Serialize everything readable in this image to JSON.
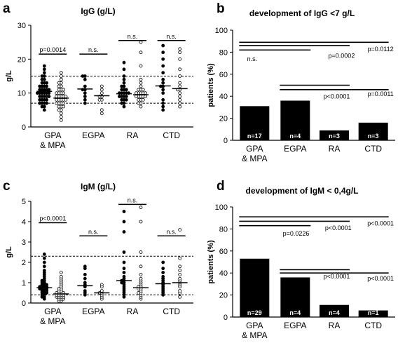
{
  "chart_data": [
    {
      "panel": "a",
      "type": "scatter",
      "title": "IgG (g/L)",
      "ylabel": "g/L",
      "ylim": [
        0,
        30
      ],
      "yticks": [
        "0",
        "10",
        "20",
        "30"
      ],
      "reference_lines": [
        7,
        15
      ],
      "groups": [
        {
          "label": [
            "GPA",
            "& MPA"
          ],
          "series": [
            {
              "marker": "filled",
              "median": 10.5,
              "values": [
                5,
                6,
                6,
                7,
                7,
                7,
                7,
                8,
                8,
                8,
                8,
                9,
                9,
                9,
                9,
                9,
                10,
                10,
                10,
                10,
                10,
                10,
                11,
                11,
                11,
                11,
                11,
                12,
                12,
                12,
                12,
                13,
                13,
                13,
                14,
                14,
                15,
                15,
                16,
                17,
                18
              ]
            },
            {
              "marker": "open",
              "median": 8.5,
              "values": [
                2,
                3,
                4,
                5,
                5,
                6,
                6,
                6,
                7,
                7,
                7,
                7,
                8,
                8,
                8,
                8,
                8,
                9,
                9,
                9,
                9,
                9,
                10,
                10,
                10,
                10,
                11,
                11,
                11,
                12,
                12,
                13,
                13,
                14,
                15,
                16
              ]
            }
          ]
        },
        {
          "label": [
            "EGPA"
          ],
          "series": [
            {
              "marker": "filled",
              "median": 11.2,
              "values": [
                7,
                8,
                9,
                10,
                11,
                11,
                12,
                14,
                15,
                15
              ]
            },
            {
              "marker": "open",
              "median": 9.2,
              "values": [
                4,
                5,
                8,
                8,
                9,
                9,
                10,
                11,
                12
              ]
            }
          ]
        },
        {
          "label": [
            "RA"
          ],
          "series": [
            {
              "marker": "filled",
              "median": 9.8,
              "values": [
                6,
                7,
                7,
                8,
                8,
                8,
                9,
                9,
                9,
                9,
                10,
                10,
                10,
                10,
                10,
                11,
                11,
                11,
                12,
                12,
                13,
                14,
                15,
                17,
                19
              ]
            },
            {
              "marker": "open",
              "median": 9.5,
              "values": [
                6,
                7,
                7,
                8,
                8,
                8,
                9,
                9,
                9,
                9,
                9,
                10,
                10,
                10,
                10,
                10,
                11,
                11,
                11,
                12,
                13,
                14,
                18,
                22,
                25
              ]
            }
          ]
        },
        {
          "label": [
            "CTD"
          ],
          "series": [
            {
              "marker": "filled",
              "median": 12.1,
              "values": [
                5,
                6,
                7,
                8,
                10,
                11,
                12,
                12,
                13,
                14,
                16,
                18,
                20,
                22,
                24
              ]
            },
            {
              "marker": "open",
              "median": 11.3,
              "values": [
                6,
                7,
                8,
                9,
                10,
                11,
                11,
                12,
                13,
                15,
                17,
                20,
                22,
                23
              ]
            }
          ]
        }
      ],
      "comparisons": [
        "p=0.0014",
        "n.s.",
        "n.s.",
        "n.s."
      ]
    },
    {
      "panel": "b",
      "type": "bar",
      "title": "development of IgG <7 g/L",
      "ylabel": "patients (%)",
      "ylim": [
        0,
        100
      ],
      "yticks": [
        "0",
        "20",
        "40",
        "60",
        "80",
        "100"
      ],
      "categories": [
        [
          "GPA",
          "& MPA"
        ],
        [
          "EGPA"
        ],
        [
          "RA"
        ],
        [
          "CTD"
        ]
      ],
      "values": [
        31,
        36,
        9,
        16
      ],
      "n_labels": [
        "n=17",
        "n=4",
        "n=3",
        "n=3"
      ],
      "comparisons": [
        "n.s.",
        "p=0.0002",
        "p=0.0112",
        "p<0.0001",
        "p=0.0011"
      ]
    },
    {
      "panel": "c",
      "type": "scatter",
      "title": "IgM (g/L)",
      "ylabel": "g/L",
      "ylim": [
        0,
        5
      ],
      "yticks": [
        "0",
        "1",
        "2",
        "3",
        "4",
        "5"
      ],
      "reference_lines": [
        0.4,
        2.3
      ],
      "groups": [
        {
          "label": [
            "GPA",
            "& MPA"
          ],
          "series": [
            {
              "marker": "filled",
              "median": 0.75,
              "values": [
                0.2,
                0.3,
                0.3,
                0.4,
                0.4,
                0.5,
                0.5,
                0.5,
                0.6,
                0.6,
                0.6,
                0.7,
                0.7,
                0.7,
                0.7,
                0.8,
                0.8,
                0.8,
                0.8,
                0.9,
                0.9,
                0.9,
                1.0,
                1.0,
                1.1,
                1.1,
                1.2,
                1.3,
                1.4,
                1.5,
                1.6,
                1.8,
                2.0,
                2.2,
                2.4
              ]
            },
            {
              "marker": "open",
              "median": 0.45,
              "values": [
                0.1,
                0.1,
                0.2,
                0.2,
                0.2,
                0.3,
                0.3,
                0.3,
                0.3,
                0.4,
                0.4,
                0.4,
                0.4,
                0.5,
                0.5,
                0.5,
                0.5,
                0.6,
                0.6,
                0.7,
                0.7,
                0.8,
                0.9,
                1.0,
                1.1,
                1.2,
                1.3,
                1.5
              ]
            }
          ]
        },
        {
          "label": [
            "EGPA"
          ],
          "series": [
            {
              "marker": "filled",
              "median": 0.85,
              "values": [
                0.4,
                0.5,
                0.6,
                0.8,
                0.9,
                1.0,
                1.2,
                1.4,
                1.7,
                1.8
              ]
            },
            {
              "marker": "open",
              "median": 0.5,
              "values": [
                0.2,
                0.3,
                0.4,
                0.5,
                0.5,
                0.6,
                0.8,
                0.9
              ]
            }
          ]
        },
        {
          "label": [
            "RA"
          ],
          "series": [
            {
              "marker": "filled",
              "median": 1.1,
              "values": [
                0.3,
                0.4,
                0.5,
                0.6,
                0.7,
                0.8,
                0.9,
                1.0,
                1.0,
                1.1,
                1.1,
                1.2,
                1.3,
                1.5,
                1.7,
                2.0,
                2.5,
                3.5,
                4.0,
                4.5
              ]
            },
            {
              "marker": "open",
              "median": 0.75,
              "values": [
                0.2,
                0.3,
                0.4,
                0.5,
                0.5,
                0.6,
                0.7,
                0.7,
                0.8,
                0.8,
                0.9,
                1.0,
                1.1,
                1.2,
                1.4,
                1.8,
                2.5,
                4.0,
                4.7
              ]
            }
          ]
        },
        {
          "label": [
            "CTD"
          ],
          "series": [
            {
              "marker": "filled",
              "median": 0.95,
              "values": [
                0.4,
                0.5,
                0.6,
                0.7,
                0.8,
                0.9,
                1.0,
                1.1,
                1.2,
                1.3,
                1.5,
                1.7,
                2.0
              ]
            },
            {
              "marker": "open",
              "median": 1.0,
              "values": [
                0.3,
                0.5,
                0.6,
                0.8,
                0.9,
                1.0,
                1.1,
                1.2,
                1.4,
                1.6,
                1.8,
                2.2,
                3.6
              ]
            }
          ]
        }
      ],
      "comparisons": [
        "p<0.0001",
        "n.s.",
        "n.s.",
        "n.s."
      ]
    },
    {
      "panel": "d",
      "type": "bar",
      "title": "development of IgM < 0,4g/L",
      "ylabel": "patients (%)",
      "ylim": [
        0,
        100
      ],
      "yticks": [
        "0",
        "20",
        "40",
        "60",
        "80",
        "100"
      ],
      "categories": [
        [
          "GPA",
          "& MPA"
        ],
        [
          "EGPA"
        ],
        [
          "RA"
        ],
        [
          "CTD"
        ]
      ],
      "values": [
        53,
        36,
        11,
        6
      ],
      "n_labels": [
        "n=29",
        "n=4",
        "n=4",
        "n=1"
      ],
      "comparisons": [
        "p=0.0226",
        "p<0.0001",
        "p<0.0001",
        "p<0.0001",
        "p<0.0001"
      ]
    }
  ]
}
